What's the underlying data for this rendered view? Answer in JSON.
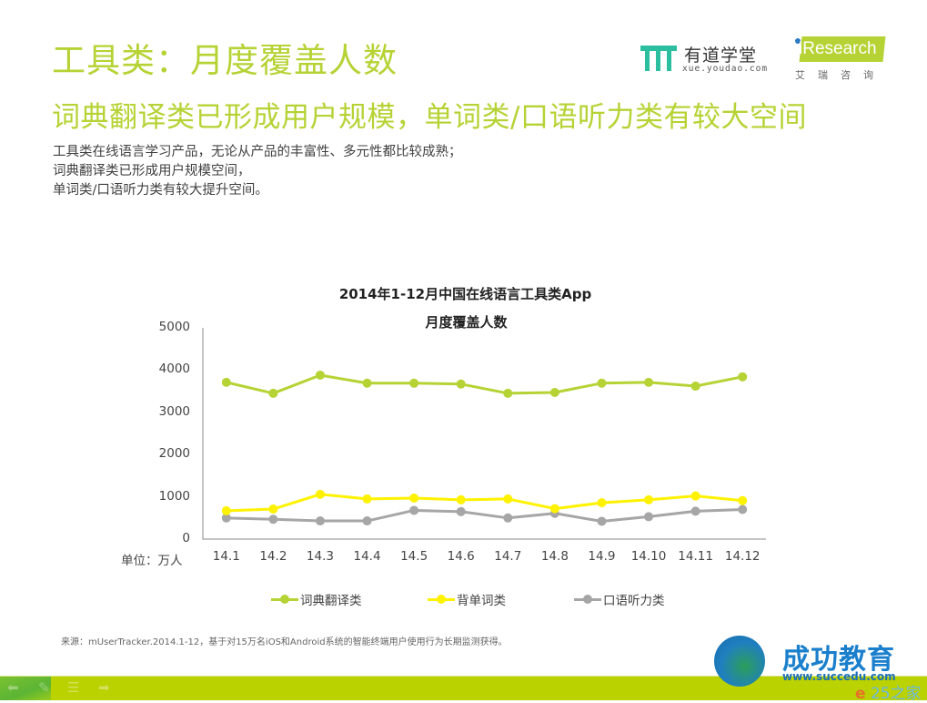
{
  "header": {
    "title": "工具类：月度覆盖人数",
    "subtitle": "词典翻译类已形成用户规模，单词类/口语听力类有较大空间",
    "description": [
      "工具类在线语言学习产品，无论从产品的丰富性、多元性都比较成熟；",
      "词典翻译类已形成用户规模空间，",
      "单词类/口语听力类有较大提升空间。"
    ]
  },
  "logos": {
    "youdao": {
      "name": "有道学堂",
      "url": "xue.youdao.com",
      "color": "#2bbfa0"
    },
    "iresearch": {
      "name": "iResearch",
      "cn": "艾瑞咨询",
      "color": "#b5d334"
    }
  },
  "chart": {
    "unit_label": "单位：万人"
  },
  "chart_data": {
    "type": "line",
    "title": "2014年1-12月中国在线语言工具类App",
    "subtitle": "月度覆盖人数",
    "xlabel": "",
    "ylabel": "单位：万人",
    "ylim": [
      0,
      5000
    ],
    "yticks": [
      0,
      1000,
      2000,
      3000,
      4000,
      5000
    ],
    "grid": false,
    "legend_position": "bottom",
    "categories": [
      "14.1",
      "14.2",
      "14.3",
      "14.4",
      "14.5",
      "14.6",
      "14.7",
      "14.8",
      "14.9",
      "14.10",
      "14.11",
      "14.12"
    ],
    "series": [
      {
        "name": "词典翻译类",
        "color": "#b5d334",
        "values": [
          3710,
          3450,
          3880,
          3690,
          3690,
          3670,
          3450,
          3470,
          3690,
          3710,
          3620,
          3840
        ]
      },
      {
        "name": "背单词类",
        "color": "#fff200",
        "values": [
          670,
          710,
          1060,
          950,
          970,
          930,
          950,
          720,
          860,
          930,
          1020,
          910
        ]
      },
      {
        "name": "口语听力类",
        "color": "#a6a6a6",
        "values": [
          500,
          470,
          430,
          430,
          680,
          650,
          500,
          610,
          420,
          530,
          660,
          700
        ]
      }
    ]
  },
  "source": "来源：mUserTracker.2014.1-12，基于对15万名iOS和Android系统的智能终端用户使用行为长期监测获得。",
  "footer": {
    "nav_icons": [
      "back-arrow",
      "pen",
      "menu",
      "forward-arrow"
    ]
  },
  "watermark": {
    "title": "成功教育",
    "url": "www.succedu.com",
    "badge": "25之家"
  }
}
